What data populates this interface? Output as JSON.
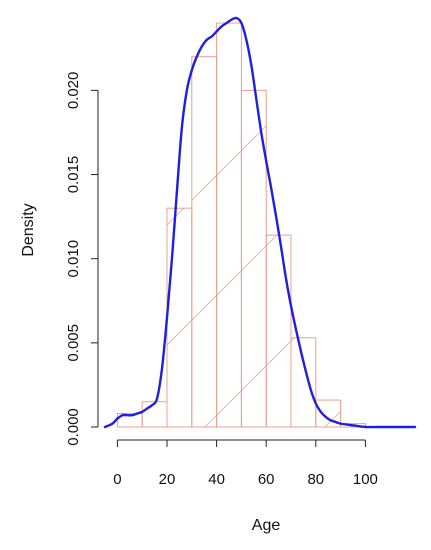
{
  "chart_data": {
    "type": "bar",
    "xlabel": "Age",
    "ylabel": "Density",
    "xlim": [
      -5,
      120
    ],
    "ylim": [
      0,
      0.0243
    ],
    "x_ticks": [
      0,
      20,
      40,
      60,
      80,
      100
    ],
    "y_ticks": [
      0.0,
      0.005,
      0.01,
      0.015,
      0.02
    ],
    "y_tick_labels": [
      "0.000",
      "0.005",
      "0.010",
      "0.015",
      "0.020"
    ],
    "grid": false,
    "legend": "none",
    "histogram": {
      "bin_edges": [
        0,
        10,
        20,
        30,
        40,
        50,
        60,
        70,
        80,
        90,
        100
      ],
      "densities": [
        0.0008,
        0.0015,
        0.013,
        0.022,
        0.024,
        0.02,
        0.0114,
        0.0053,
        0.0016,
        0.0002
      ],
      "color": "#e9a08c",
      "fill": "shading lines"
    },
    "density_curve": {
      "color": "#1f1fe0",
      "x": [
        -5,
        -2,
        0,
        2,
        4,
        6,
        8,
        10,
        12,
        14,
        16,
        18,
        20,
        22,
        24,
        26,
        28,
        30,
        32,
        34,
        36,
        38,
        40,
        42,
        44,
        46,
        48,
        50,
        52,
        54,
        56,
        58,
        60,
        62,
        64,
        66,
        68,
        70,
        72,
        74,
        76,
        78,
        80,
        82,
        84,
        86,
        88,
        90,
        95,
        100,
        105,
        110,
        120
      ],
      "y": [
        0.0,
        0.0002,
        0.0005,
        0.0007,
        0.0007,
        0.0007,
        0.0008,
        0.0009,
        0.0011,
        0.0013,
        0.0017,
        0.0035,
        0.0065,
        0.01,
        0.014,
        0.0178,
        0.02,
        0.0212,
        0.022,
        0.0226,
        0.023,
        0.0232,
        0.0235,
        0.0238,
        0.024,
        0.0242,
        0.0243,
        0.024,
        0.023,
        0.0215,
        0.0195,
        0.0175,
        0.0158,
        0.0142,
        0.0125,
        0.0107,
        0.0088,
        0.0072,
        0.0058,
        0.0045,
        0.0033,
        0.0022,
        0.0014,
        0.0009,
        0.0006,
        0.0004,
        0.0003,
        0.0002,
        0.0001,
        0.0,
        0.0,
        0.0,
        0.0
      ]
    }
  }
}
